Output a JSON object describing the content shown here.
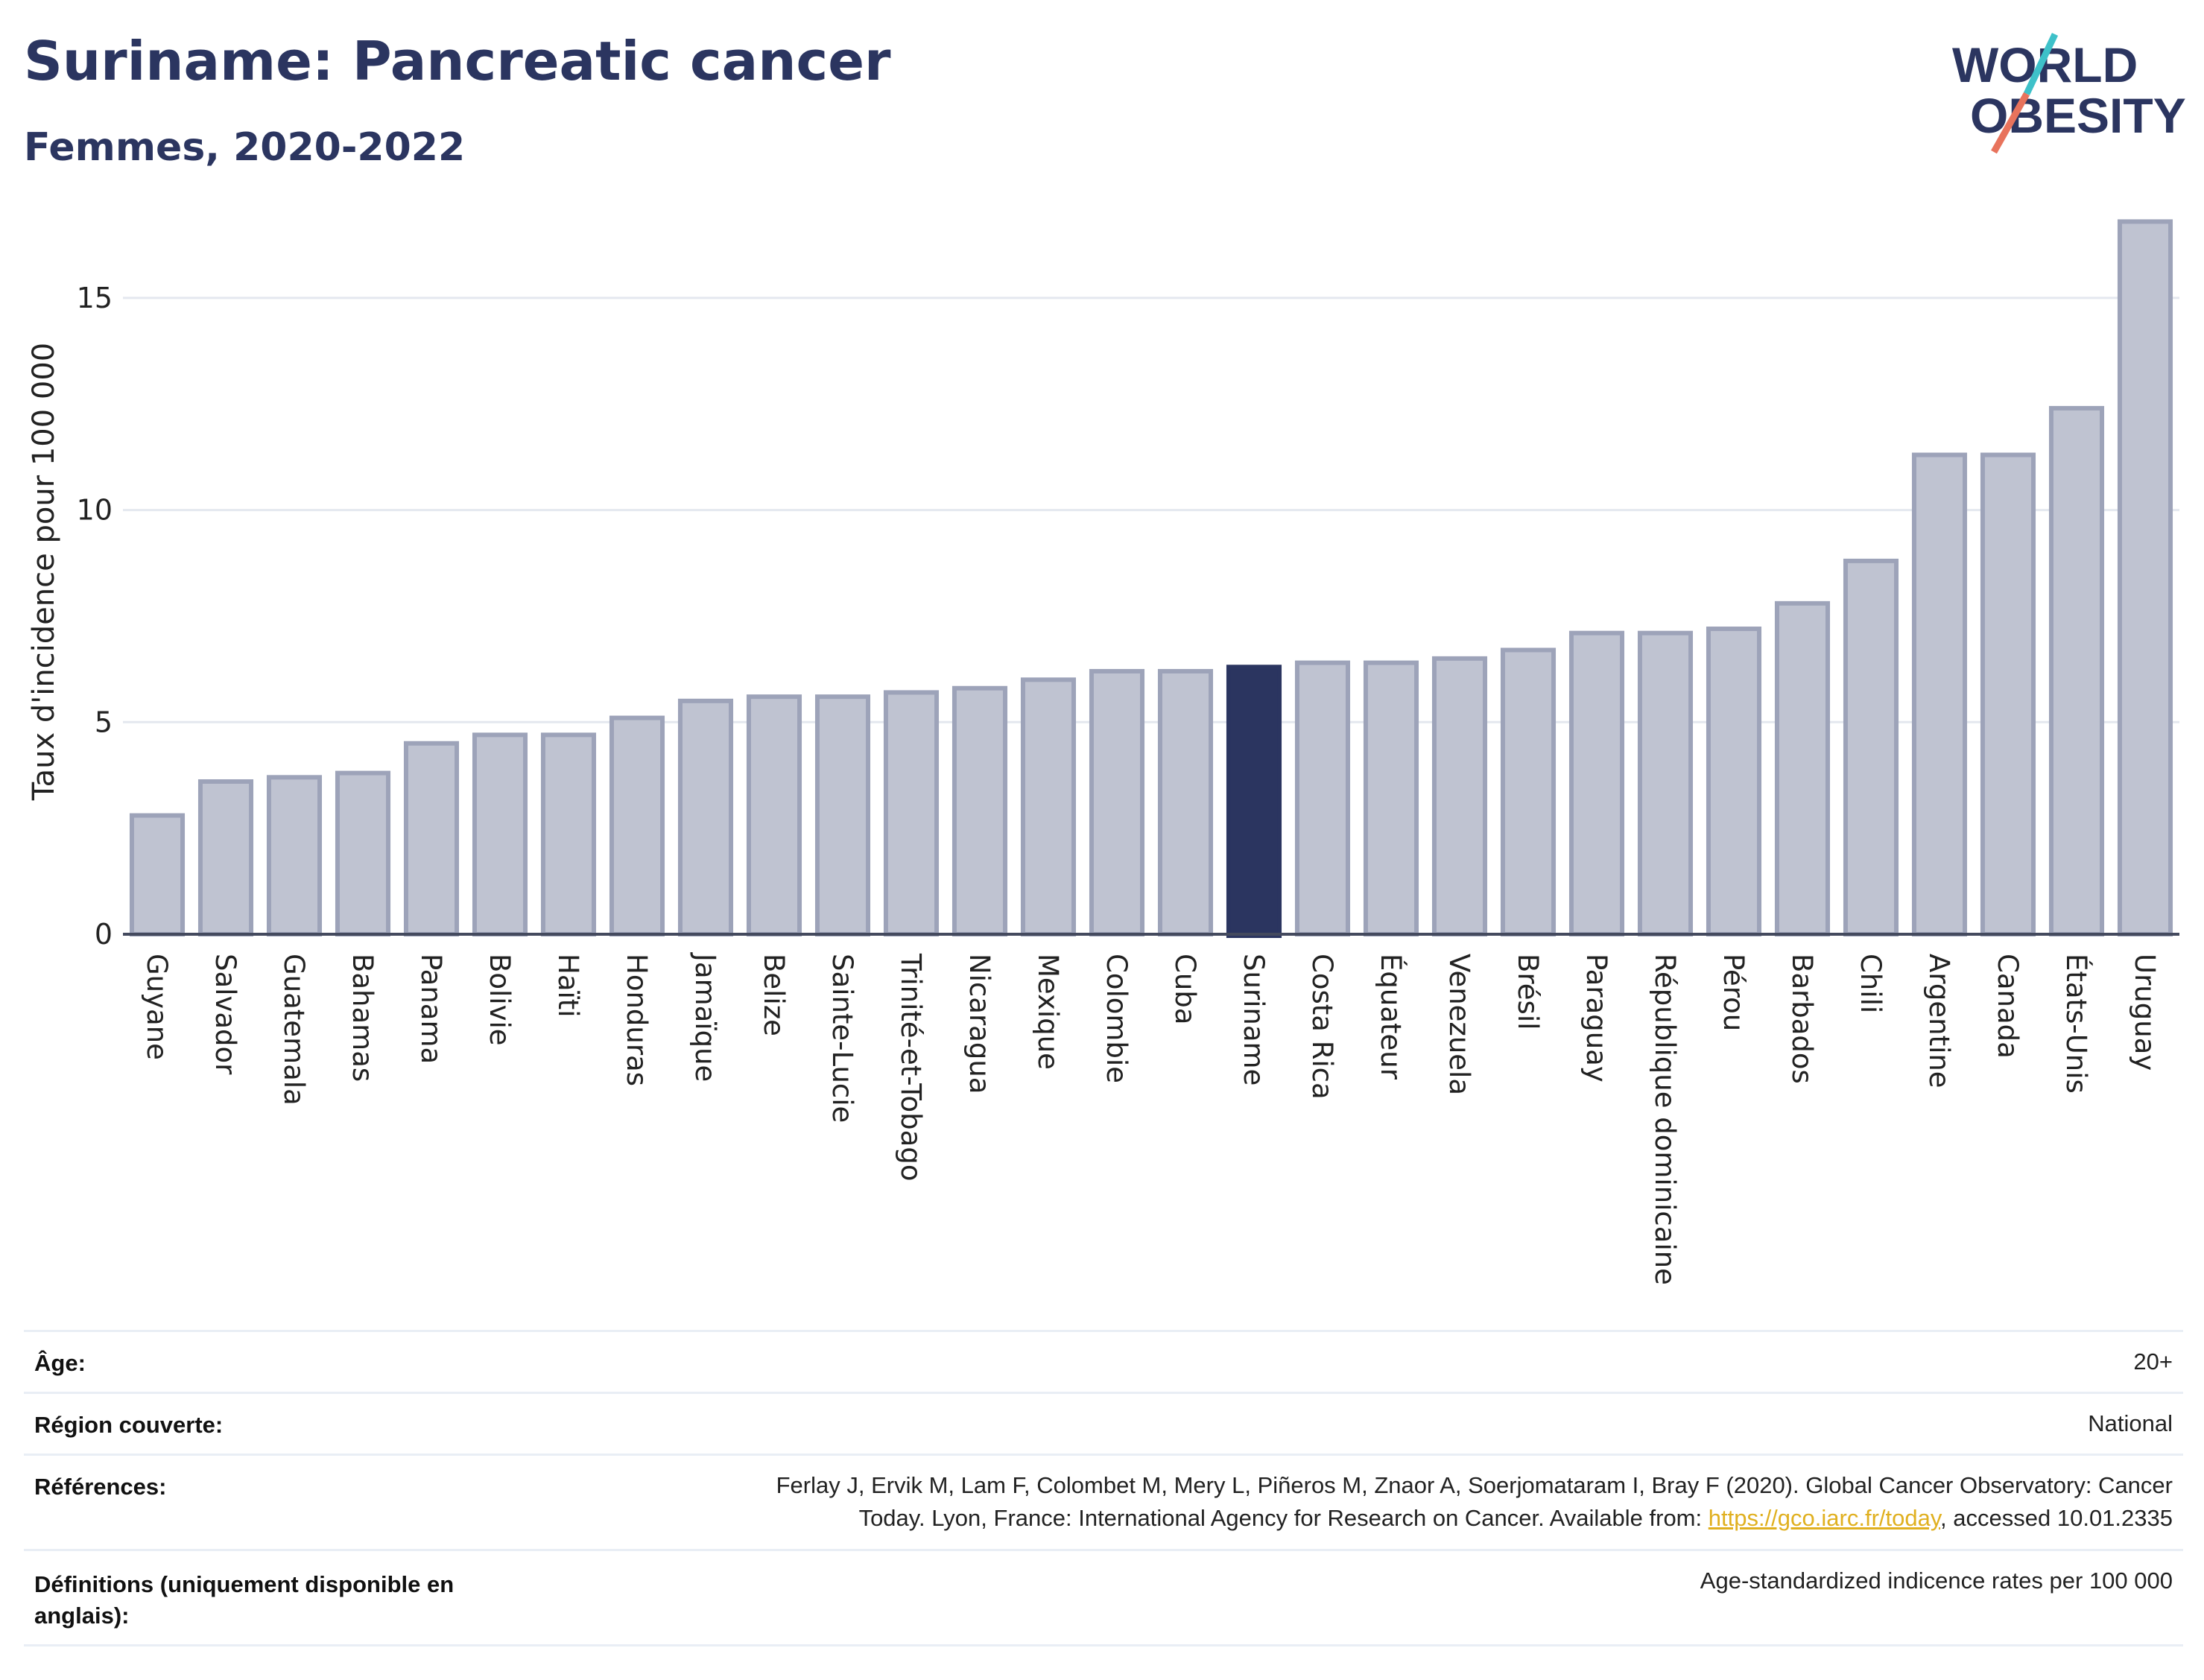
{
  "header": {
    "title": "Suriname: Pancreatic cancer",
    "subtitle": "Femmes, 2020-2022",
    "logo_line1": "WORLD",
    "logo_line2": "OBESITY"
  },
  "colors": {
    "bar": "#bfc3d1",
    "bar_stroke": "#9da3b9",
    "highlight": "#2b3560",
    "title": "#2b3560",
    "logo_teal": "#3ec1c9",
    "logo_coral": "#e8735c"
  },
  "chart_data": {
    "type": "bar",
    "title": "Suriname: Pancreatic cancer",
    "subtitle": "Femmes, 2020-2022",
    "ylabel": "Taux d'incidence pour 100 000",
    "xlabel": "",
    "ylim": [
      0,
      17
    ],
    "yticks": [
      0,
      5,
      10,
      15
    ],
    "grid": true,
    "highlight": "Suriname",
    "categories": [
      "Guyane",
      "Salvador",
      "Guatemala",
      "Bahamas",
      "Panama",
      "Bolivie",
      "Haïti",
      "Honduras",
      "Jamaïque",
      "Belize",
      "Sainte-Lucie",
      "Trinité-et-Tobago",
      "Nicaragua",
      "Mexique",
      "Colombie",
      "Cuba",
      "Suriname",
      "Costa Rica",
      "Équateur",
      "Venezuela",
      "Brésil",
      "Paraguay",
      "République dominicaine",
      "Pérou",
      "Barbados",
      "Chili",
      "Argentine",
      "Canada",
      "États-Unis",
      "Uruguay"
    ],
    "values": [
      2.8,
      3.6,
      3.7,
      3.8,
      4.5,
      4.7,
      4.7,
      5.1,
      5.5,
      5.6,
      5.6,
      5.7,
      5.8,
      6.0,
      6.2,
      6.2,
      6.3,
      6.4,
      6.4,
      6.5,
      6.7,
      7.1,
      7.1,
      7.2,
      7.8,
      8.8,
      11.3,
      11.3,
      12.4,
      16.8
    ]
  },
  "footer": {
    "rows": [
      {
        "label": "Âge:",
        "value": "20+"
      },
      {
        "label": "Région couverte:",
        "value": "National"
      },
      {
        "label": "Références:",
        "value_line1": "Ferlay J, Ervik M, Lam F, Colombet M, Mery L, Piñeros M, Znaor A, Soerjomataram I, Bray F (2020). Global Cancer Observatory: Cancer",
        "value_line2_pre": "Today. Lyon, France: International Agency for Research on Cancer. Available from: ",
        "link": "https://gco.iarc.fr/today",
        "value_line2_post": ", accessed 10.01.2335"
      },
      {
        "label_line1": "Définitions (uniquement disponible en",
        "label_line2": "anglais):",
        "value": "Age-standardized indicence rates per 100 000"
      }
    ]
  }
}
